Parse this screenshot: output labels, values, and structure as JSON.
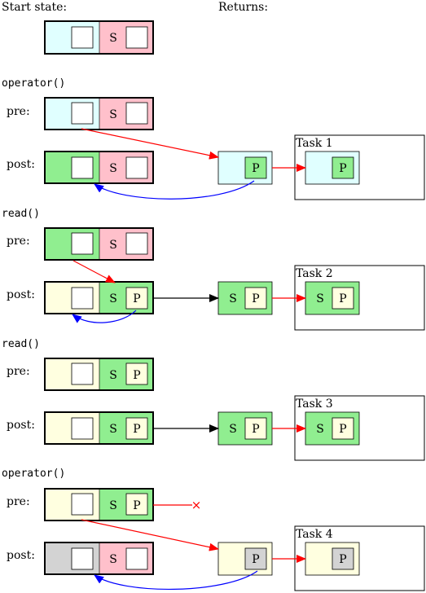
{
  "headers": {
    "start_state": "Start state:",
    "returns": "Returns:"
  },
  "colors": {
    "cyan": "#e0ffff",
    "pink": "#ffc0cb",
    "green": "#90ee90",
    "yellow": "#ffffe0",
    "gray": "#d3d3d3",
    "red_arrow": "#ff0000",
    "blue_arrow": "#0000ff",
    "black_arrow": "#000000"
  },
  "labels": {
    "s": "S",
    "p": "P",
    "cross": "×"
  },
  "sections": [
    {
      "title": "operator()",
      "pre": "pre:",
      "post": "post:",
      "task": "Task 1"
    },
    {
      "title": "read()",
      "pre": "pre:",
      "post": "post:",
      "task": "Task 2"
    },
    {
      "title": "read()",
      "pre": "pre:",
      "post": "post:",
      "task": "Task 3"
    },
    {
      "title": "operator()",
      "pre": "pre:",
      "post": "post:",
      "task": "Task 4"
    }
  ]
}
